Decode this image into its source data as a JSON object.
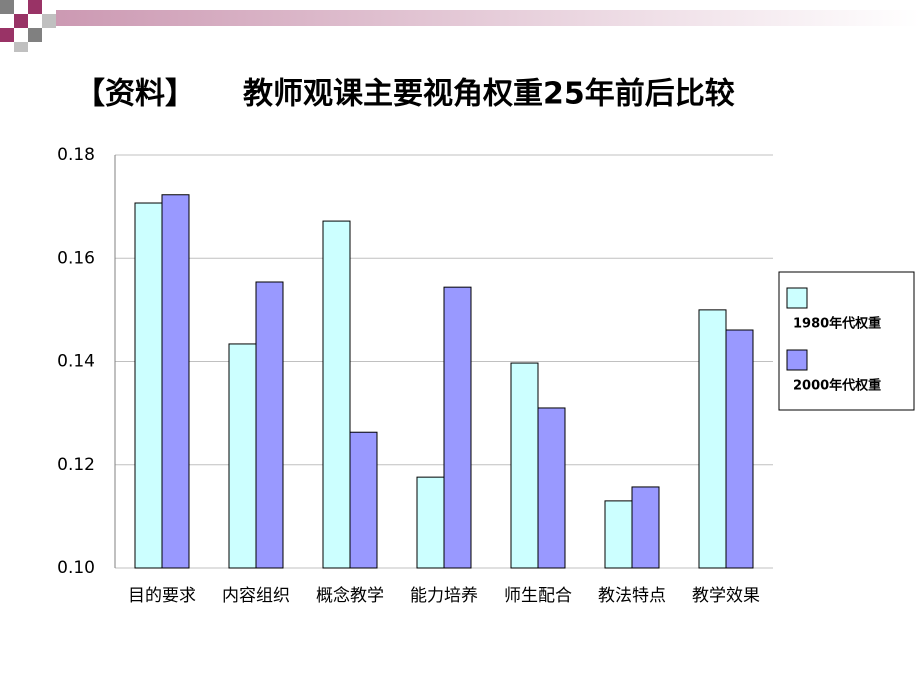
{
  "chart_data": {
    "type": "bar",
    "label": "【资料】",
    "title": "教师观课主要视角权重25年前后比较",
    "categories": [
      "目的要求",
      "内容组织",
      "概念教学",
      "能力培养",
      "师生配合",
      "教法特点",
      "教学效果"
    ],
    "series": [
      {
        "name": "1980年代权重",
        "color": "#ccffff",
        "values": [
          0.1707,
          0.1434,
          0.1672,
          0.1176,
          0.1397,
          0.113,
          0.15
        ]
      },
      {
        "name": "2000年代权重",
        "color": "#9999ff",
        "values": [
          0.1723,
          0.1554,
          0.1263,
          0.1544,
          0.131,
          0.1157,
          0.1461
        ]
      }
    ],
    "ylim": [
      0.1,
      0.18
    ],
    "yticks": [
      {
        "value": 0.1,
        "label": "0.10"
      },
      0.12,
      0.14,
      0.16,
      0.18
    ],
    "grid": true,
    "legend": "right"
  }
}
